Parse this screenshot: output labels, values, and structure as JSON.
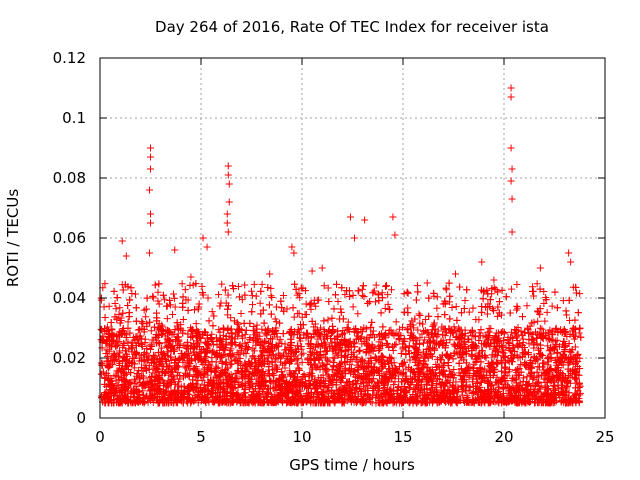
{
  "chart_data": {
    "type": "scatter",
    "title": "Day 264 of 2016, Rate Of TEC Index for receiver ista",
    "xlabel": "GPS time / hours",
    "ylabel": "ROTI / TECUs",
    "xlim": [
      0,
      25
    ],
    "ylim": [
      0,
      0.12
    ],
    "xticks": [
      0,
      5,
      10,
      15,
      20,
      25
    ],
    "yticks": [
      0,
      0.02,
      0.04,
      0.06,
      0.08,
      0.1,
      0.12
    ],
    "xtick_labels": [
      "0",
      "5",
      "10",
      "15",
      "20",
      "25"
    ],
    "ytick_labels": [
      "0",
      "0.02",
      "0.04",
      "0.06",
      "0.08",
      "0.1",
      "0.12"
    ],
    "grid": true,
    "marker": "+",
    "marker_color": "#ff0000",
    "data_range_hours": [
      0,
      23.8
    ],
    "typical_roti_range": [
      0.005,
      0.03
    ],
    "series": [
      {
        "name": "ista",
        "x": [
          2.5,
          2.5,
          2.5,
          2.45,
          2.5,
          2.5,
          2.45,
          6.35,
          6.35,
          6.4,
          6.4,
          6.3,
          6.3,
          6.35,
          20.35,
          20.35,
          20.35,
          20.4,
          20.35,
          20.4,
          20.4,
          14.5,
          14.6,
          12.4,
          13.1,
          12.6,
          1.1,
          1.3,
          5.1,
          5.3,
          9.5,
          9.6,
          11.0,
          17.6,
          18.9,
          21.8,
          23.2,
          23.3,
          3.7,
          8.4,
          16.2,
          19.5,
          10.5,
          4.5
        ],
        "y": [
          0.09,
          0.087,
          0.083,
          0.076,
          0.068,
          0.065,
          0.055,
          0.084,
          0.081,
          0.078,
          0.072,
          0.068,
          0.065,
          0.062,
          0.11,
          0.107,
          0.09,
          0.083,
          0.079,
          0.073,
          0.062,
          0.067,
          0.061,
          0.067,
          0.066,
          0.06,
          0.059,
          0.054,
          0.06,
          0.057,
          0.057,
          0.055,
          0.05,
          0.048,
          0.052,
          0.05,
          0.055,
          0.052,
          0.056,
          0.048,
          0.045,
          0.046,
          0.049,
          0.047
        ]
      }
    ]
  }
}
